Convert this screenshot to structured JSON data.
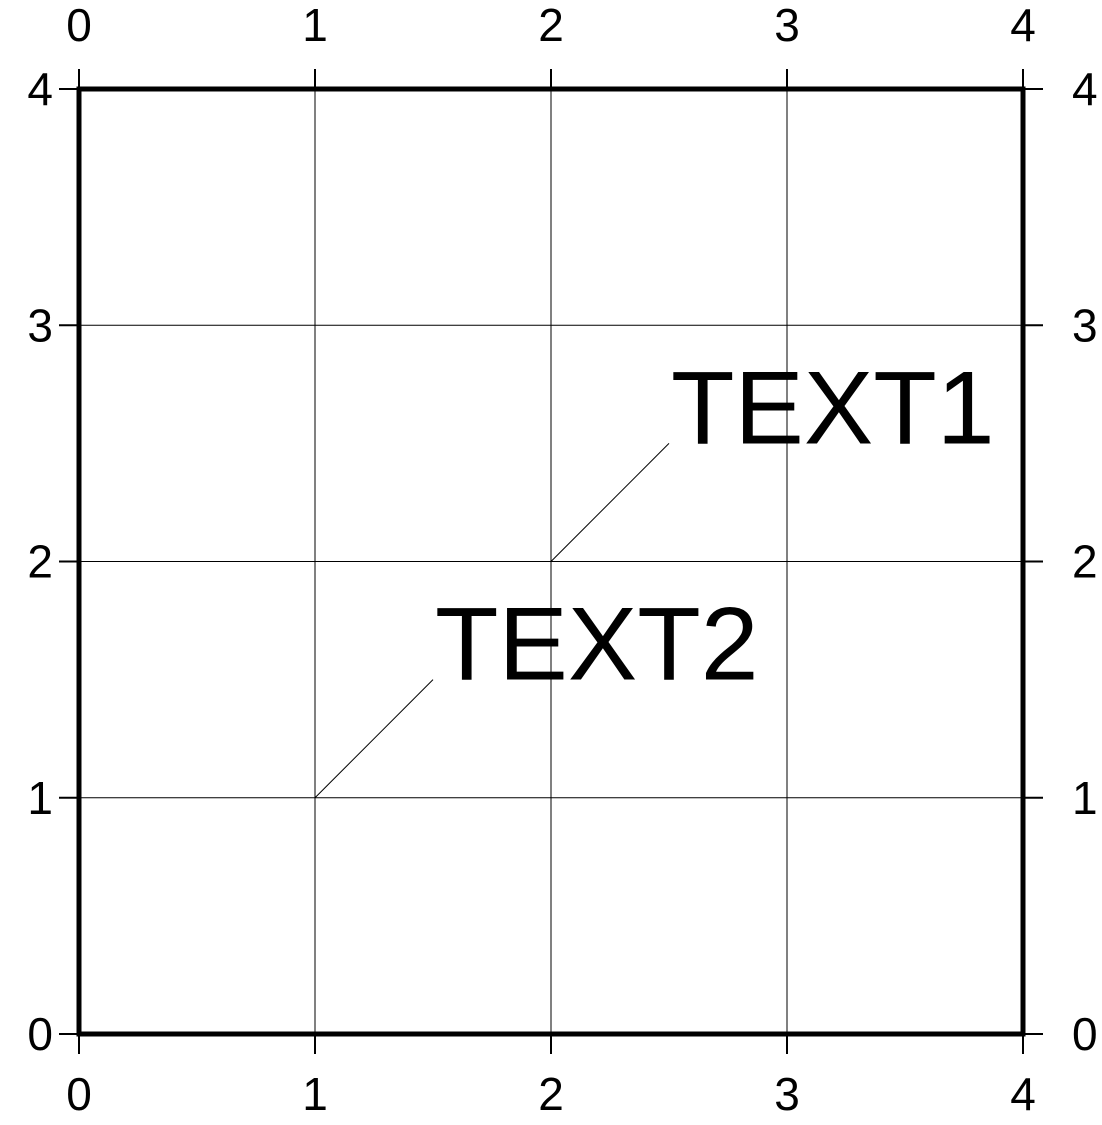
{
  "chart_data": {
    "type": "scatter",
    "title": "",
    "xlabel": "",
    "ylabel": "",
    "xlim": [
      0,
      4
    ],
    "ylim": [
      0,
      4
    ],
    "grid": true,
    "x_ticks": [
      0,
      1,
      2,
      3,
      4
    ],
    "y_ticks": [
      0,
      1,
      2,
      3,
      4
    ],
    "x_tick_labels": [
      "0",
      "1",
      "2",
      "3",
      "4"
    ],
    "y_tick_labels": [
      "0",
      "1",
      "2",
      "3",
      "4"
    ],
    "annotations": [
      {
        "text": "TEXT1",
        "point": [
          2,
          2
        ],
        "text_anchor": [
          2.5,
          2.5
        ]
      },
      {
        "text": "TEXT2",
        "point": [
          1,
          1
        ],
        "text_anchor": [
          1.5,
          1.5
        ]
      }
    ],
    "colors": {
      "frame": "#000000",
      "grid": "#000000",
      "text": "#000000"
    }
  }
}
